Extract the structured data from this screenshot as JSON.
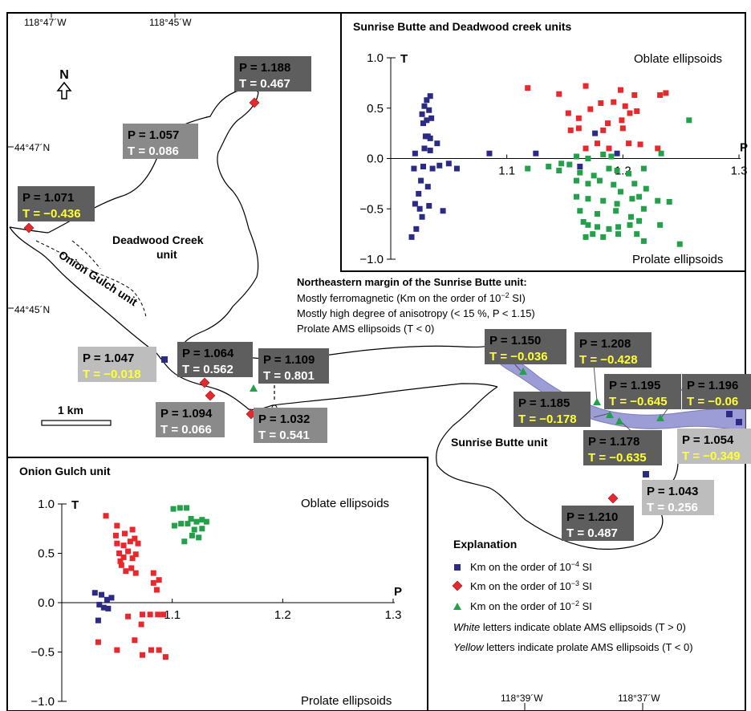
{
  "map": {
    "coords_top": [
      "118°47´W",
      "118°45´W"
    ],
    "coords_left": [
      "44°47´N",
      "44°45´N"
    ],
    "coords_bottom": [
      "118°39´W",
      "118°37´W"
    ],
    "north": "N",
    "scale": "1 km",
    "units": {
      "deadwood": [
        "Deadwood Creek",
        "unit"
      ],
      "onion": "Onion Gulch unit",
      "sunrise": "Sunrise Butte unit"
    },
    "annotation": {
      "title": "Northeastern margin of the Sunrise Butte unit:",
      "line1": "Mostly ferromagnetic (Km on the order of 10",
      "line1_exp": "−2",
      "line1_end": " SI)",
      "line2": "Mostly high degree of anisotropy (< 15 %, P < 1.15)",
      "line3": "Prolate AMS ellipsoids (T < 0)"
    },
    "sites": [
      {
        "p": "P = 1.188",
        "t": "T = 0.467",
        "t_color": "white"
      },
      {
        "p": "P = 1.057",
        "t": "T = 0.086",
        "t_color": "white"
      },
      {
        "p": "P = 1.071",
        "t": "T = −0.436",
        "t_color": "yellow"
      },
      {
        "p": "P = 1.047",
        "t": "T = −0.018",
        "t_color": "yellow"
      },
      {
        "p": "P = 1.064",
        "t": "T = 0.562",
        "t_color": "white"
      },
      {
        "p": "P = 1.109",
        "t": "T = 0.801",
        "t_color": "white"
      },
      {
        "p": "P = 1.094",
        "t": "T = 0.066",
        "t_color": "white"
      },
      {
        "p": "P = 1.032",
        "t": "T = 0.541",
        "t_color": "white"
      },
      {
        "p": "P = 1.150",
        "t": "T = −0.036",
        "t_color": "yellow"
      },
      {
        "p": "P = 1.208",
        "t": "T = −0.428",
        "t_color": "yellow"
      },
      {
        "p": "P = 1.195",
        "t": "T = −0.645",
        "t_color": "yellow"
      },
      {
        "p": "P = 1.196",
        "t": "T = −0.06",
        "t_color": "yellow"
      },
      {
        "p": "P = 1.185",
        "t": "T = −0.178",
        "t_color": "yellow"
      },
      {
        "p": "P = 1.178",
        "t": "T = −0.635",
        "t_color": "yellow"
      },
      {
        "p": "P = 1.054",
        "t": "T = −0.349",
        "t_color": "yellow"
      },
      {
        "p": "P = 1.043",
        "t": "T = 0.256",
        "t_color": "white"
      },
      {
        "p": "P = 1.210",
        "t": "T = 0.487",
        "t_color": "white"
      }
    ],
    "explanation": {
      "title": "Explanation",
      "km4": "Km on the order of 10",
      "km4_exp": "−4",
      "km3": "Km on the order of 10",
      "km3_exp": "−3",
      "km2": "Km on the order of 10",
      "km2_exp": "−2",
      "si": " SI",
      "white_word": "White",
      "white_rest": " letters indicate oblate AMS ellipsoids (T > 0)",
      "yellow_word": "Yellow",
      "yellow_rest": " letters indicate prolate AMS ellipsoids (T < 0)"
    },
    "colors": {
      "km4": "#2b2b86",
      "km3": "#e8282d",
      "km2": "#23a04a",
      "margin_band": "#9c9cd6",
      "box_dark": "#5e5e5e",
      "box_mid": "#8a8a8a",
      "box_light": "#bdbdbd",
      "yellow_text": "#ffff33"
    }
  },
  "chart_data": [
    {
      "type": "scatter",
      "title": "Sunrise Butte and Deadwood creek units",
      "xlabel": "P",
      "ylabel": "T",
      "xlim": [
        1.0,
        1.3
      ],
      "ylim": [
        -1.0,
        1.0
      ],
      "x_ticks": [
        "1.1",
        "1.2",
        "1.3"
      ],
      "y_ticks": [
        "1.0",
        "0.5",
        "0.0",
        "−0.5",
        "−1.0"
      ],
      "annotations": [
        "Oblate ellipsoids",
        "Prolate ellipsoids"
      ],
      "series": [
        {
          "key": "km4",
          "marker": "square",
          "points": [
            [
              1.031,
              0.58
            ],
            [
              1.034,
              0.62
            ],
            [
              1.029,
              0.52
            ],
            [
              1.033,
              0.48
            ],
            [
              1.027,
              0.44
            ],
            [
              1.031,
              0.38
            ],
            [
              1.035,
              0.4
            ],
            [
              1.028,
              0.35
            ],
            [
              1.03,
              0.22
            ],
            [
              1.034,
              0.2
            ],
            [
              1.032,
              0.22
            ],
            [
              1.029,
              0.1
            ],
            [
              1.021,
              0.05
            ],
            [
              1.034,
              0.08
            ],
            [
              1.04,
              0.15
            ],
            [
              1.02,
              -0.1
            ],
            [
              1.028,
              -0.08
            ],
            [
              1.036,
              -0.1
            ],
            [
              1.042,
              -0.07
            ],
            [
              1.05,
              -0.05
            ],
            [
              1.057,
              -0.1
            ],
            [
              1.026,
              -0.22
            ],
            [
              1.032,
              -0.28
            ],
            [
              1.024,
              -0.35
            ],
            [
              1.021,
              -0.45
            ],
            [
              1.025,
              -0.5
            ],
            [
              1.027,
              -0.58
            ],
            [
              1.033,
              -0.47
            ],
            [
              1.022,
              -0.7
            ],
            [
              1.018,
              -0.78
            ],
            [
              1.045,
              -0.52
            ],
            [
              1.085,
              0.05
            ],
            [
              1.125,
              0.05
            ],
            [
              1.163,
              -0.08
            ],
            [
              1.176,
              0.25
            ],
            [
              1.195,
              0.05
            ]
          ]
        },
        {
          "key": "km3",
          "marker": "square",
          "points": [
            [
              1.118,
              0.7
            ],
            [
              1.145,
              0.64
            ],
            [
              1.168,
              0.72
            ],
            [
              1.198,
              0.68
            ],
            [
              1.21,
              0.63
            ],
            [
              1.232,
              0.63
            ],
            [
              1.237,
              0.65
            ],
            [
              1.153,
              0.45
            ],
            [
              1.162,
              0.4
            ],
            [
              1.172,
              0.49
            ],
            [
              1.181,
              0.55
            ],
            [
              1.192,
              0.56
            ],
            [
              1.202,
              0.52
            ],
            [
              1.212,
              0.47
            ],
            [
              1.187,
              0.35
            ],
            [
              1.199,
              0.38
            ],
            [
              1.206,
              0.45
            ],
            [
              1.155,
              0.28
            ],
            [
              1.162,
              0.3
            ],
            [
              1.183,
              0.28
            ],
            [
              1.2,
              0.3
            ],
            [
              1.178,
              0.15
            ],
            [
              1.205,
              0.15
            ],
            [
              1.188,
              0.1
            ],
            [
              1.168,
              0.1
            ],
            [
              1.23,
              0.1
            ],
            [
              1.215,
              0.14
            ]
          ]
        },
        {
          "key": "km2",
          "marker": "square",
          "points": [
            [
              1.118,
              -0.1
            ],
            [
              1.136,
              -0.08
            ],
            [
              1.147,
              -0.05
            ],
            [
              1.154,
              -0.06
            ],
            [
              1.16,
              0.02
            ],
            [
              1.17,
              0.0
            ],
            [
              1.183,
              0.04
            ],
            [
              1.19,
              0.02
            ],
            [
              1.145,
              -0.12
            ],
            [
              1.163,
              -0.14
            ],
            [
              1.175,
              -0.17
            ],
            [
              1.188,
              -0.1
            ],
            [
              1.195,
              -0.12
            ],
            [
              1.205,
              -0.15
            ],
            [
              1.218,
              -0.1
            ],
            [
              1.16,
              -0.22
            ],
            [
              1.17,
              -0.25
            ],
            [
              1.18,
              -0.22
            ],
            [
              1.192,
              -0.26
            ],
            [
              1.198,
              -0.33
            ],
            [
              1.21,
              -0.25
            ],
            [
              1.22,
              -0.3
            ],
            [
              1.16,
              -0.38
            ],
            [
              1.17,
              -0.4
            ],
            [
              1.183,
              -0.42
            ],
            [
              1.195,
              -0.45
            ],
            [
              1.208,
              -0.4
            ],
            [
              1.214,
              -0.38
            ],
            [
              1.163,
              -0.52
            ],
            [
              1.178,
              -0.55
            ],
            [
              1.194,
              -0.52
            ],
            [
              1.207,
              -0.58
            ],
            [
              1.218,
              -0.5
            ],
            [
              1.23,
              -0.42
            ],
            [
              1.24,
              -0.43
            ],
            [
              1.166,
              -0.63
            ],
            [
              1.17,
              -0.66
            ],
            [
              1.178,
              -0.68
            ],
            [
              1.188,
              -0.7
            ],
            [
              1.196,
              -0.68
            ],
            [
              1.206,
              -0.66
            ],
            [
              1.214,
              -0.62
            ],
            [
              1.168,
              -0.78
            ],
            [
              1.174,
              -0.75
            ],
            [
              1.183,
              -0.78
            ],
            [
              1.196,
              -0.75
            ],
            [
              1.212,
              -0.75
            ],
            [
              1.218,
              -0.82
            ],
            [
              1.232,
              -0.66
            ],
            [
              1.257,
              0.38
            ],
            [
              1.233,
              0.05
            ],
            [
              1.249,
              -0.85
            ]
          ]
        }
      ]
    },
    {
      "type": "scatter",
      "title": "Onion Gulch unit",
      "xlabel": "P",
      "ylabel": "T",
      "xlim": [
        1.0,
        1.3
      ],
      "ylim": [
        -1.0,
        1.0
      ],
      "x_ticks": [
        "1.1",
        "1.2",
        "1.3"
      ],
      "y_ticks": [
        "1.0",
        "0.5",
        "0.0",
        "−0.5",
        "−1.0"
      ],
      "annotations": [
        "Oblate ellipsoids",
        "Prolate ellipsoids"
      ],
      "series": [
        {
          "key": "km4",
          "marker": "square",
          "points": [
            [
              1.03,
              0.1
            ],
            [
              1.036,
              0.08
            ],
            [
              1.041,
              0.03
            ],
            [
              1.045,
              0.05
            ],
            [
              1.034,
              -0.02
            ],
            [
              1.038,
              -0.05
            ],
            [
              1.042,
              -0.06
            ],
            [
              1.033,
              -0.18
            ]
          ]
        },
        {
          "key": "km3",
          "marker": "square",
          "points": [
            [
              1.04,
              0.88
            ],
            [
              1.05,
              0.78
            ],
            [
              1.049,
              0.68
            ],
            [
              1.057,
              0.7
            ],
            [
              1.064,
              0.74
            ],
            [
              1.05,
              0.6
            ],
            [
              1.056,
              0.58
            ],
            [
              1.062,
              0.62
            ],
            [
              1.066,
              0.65
            ],
            [
              1.069,
              0.6
            ],
            [
              1.052,
              0.5
            ],
            [
              1.056,
              0.46
            ],
            [
              1.06,
              0.52
            ],
            [
              1.064,
              0.45
            ],
            [
              1.067,
              0.49
            ],
            [
              1.054,
              0.38
            ],
            [
              1.058,
              0.32
            ],
            [
              1.063,
              0.35
            ],
            [
              1.067,
              0.3
            ],
            [
              1.053,
              0.42
            ],
            [
              1.083,
              0.3
            ],
            [
              1.083,
              0.2
            ],
            [
              1.086,
              0.13
            ],
            [
              1.088,
              0.23
            ],
            [
              1.06,
              -0.14
            ],
            [
              1.073,
              -0.12
            ],
            [
              1.08,
              -0.12
            ],
            [
              1.087,
              -0.12
            ],
            [
              1.092,
              -0.12
            ],
            [
              1.072,
              -0.22
            ],
            [
              1.033,
              -0.4
            ],
            [
              1.05,
              -0.48
            ],
            [
              1.066,
              -0.38
            ],
            [
              1.073,
              -0.53
            ],
            [
              1.081,
              -0.48
            ],
            [
              1.088,
              -0.48
            ],
            [
              1.094,
              -0.55
            ]
          ]
        },
        {
          "key": "km2",
          "marker": "square",
          "points": [
            [
              1.101,
              0.95
            ],
            [
              1.107,
              0.96
            ],
            [
              1.113,
              0.96
            ],
            [
              1.117,
              0.85
            ],
            [
              1.122,
              0.82
            ],
            [
              1.127,
              0.84
            ],
            [
              1.102,
              0.78
            ],
            [
              1.108,
              0.8
            ],
            [
              1.114,
              0.8
            ],
            [
              1.12,
              0.74
            ],
            [
              1.127,
              0.75
            ],
            [
              1.131,
              0.82
            ],
            [
              1.118,
              0.68
            ],
            [
              1.124,
              0.66
            ],
            [
              1.111,
              0.62
            ]
          ]
        }
      ]
    }
  ]
}
